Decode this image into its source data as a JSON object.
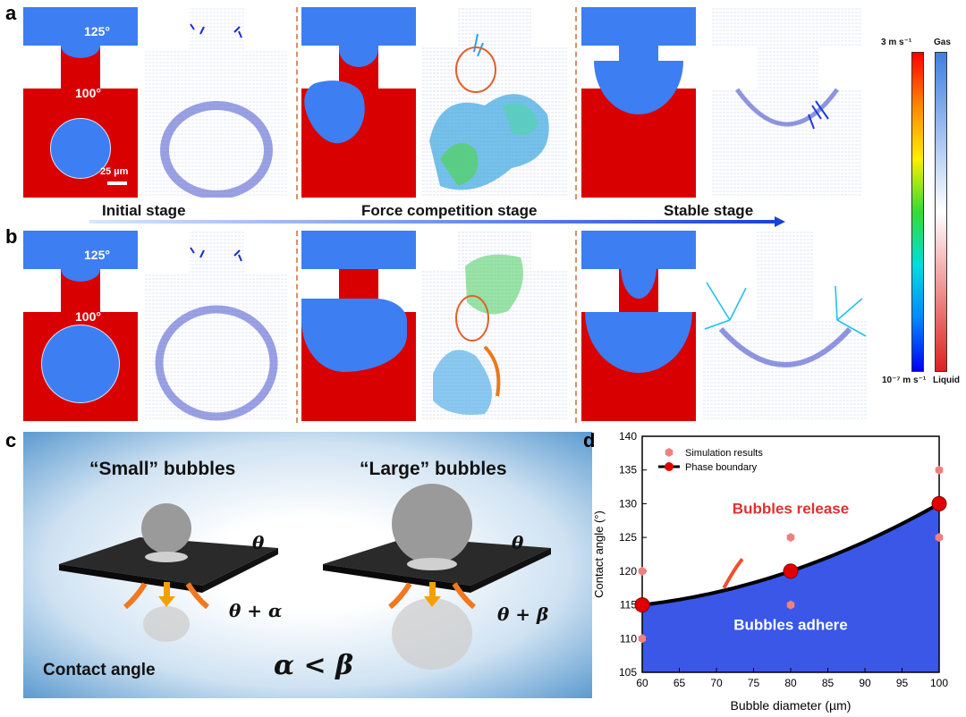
{
  "panels": {
    "a": "a",
    "b": "b",
    "c": "c",
    "d": "d"
  },
  "sim_labels": {
    "temp_top": "125°",
    "temp_bottom": "100°",
    "scale_bar": "25 µm"
  },
  "stages": {
    "initial": "Initial stage",
    "force": "Force competition stage",
    "stable": "Stable stage"
  },
  "colorbar": {
    "velocity_max": "3 m s⁻¹",
    "velocity_min": "10⁻⁷ m s⁻¹",
    "gas_label": "Gas",
    "liquid_label": "Liquid",
    "velocity_colors": [
      "#ff0000",
      "#ff8800",
      "#ffee00",
      "#33dd33",
      "#00dddd",
      "#0088ff",
      "#0000ee"
    ],
    "phase_colors": [
      "#3f7fe0",
      "#ffffff",
      "#dd2020"
    ]
  },
  "panel_c": {
    "small_title": "“Small” bubbles",
    "large_title": "“Large” bubbles",
    "theta": "θ",
    "theta_alpha": "θ + α",
    "theta_beta": "θ + β",
    "contact_angle": "Contact angle",
    "inequality": "α < β"
  },
  "chart_data": {
    "type": "scatter",
    "title": "",
    "xlabel": "Bubble diameter (µm)",
    "ylabel": "Contact angle (°)",
    "xlim": [
      60,
      100
    ],
    "ylim": [
      105,
      140
    ],
    "xticks": [
      60,
      65,
      70,
      75,
      80,
      85,
      90,
      95,
      100
    ],
    "yticks": [
      105,
      110,
      115,
      120,
      125,
      130,
      135,
      140
    ],
    "legend": {
      "simulation": "Simulation results",
      "boundary": "Phase boundary",
      "placement": "top-left"
    },
    "series": [
      {
        "name": "Simulation results",
        "type": "scatter",
        "x": [
          60,
          60,
          80,
          80,
          100,
          100
        ],
        "y": [
          120,
          110,
          125,
          115,
          135,
          125
        ]
      },
      {
        "name": "Phase boundary",
        "type": "line",
        "x": [
          60,
          80,
          100
        ],
        "y": [
          115,
          120,
          130
        ]
      }
    ],
    "regions": {
      "above": "Bubbles release",
      "below": "Bubbles adhere"
    },
    "colors": {
      "boundary_fill": "#3a57e8",
      "sim_marker": "#f08080",
      "boundary_marker": "#e00000",
      "release_text": "#e03030"
    }
  }
}
